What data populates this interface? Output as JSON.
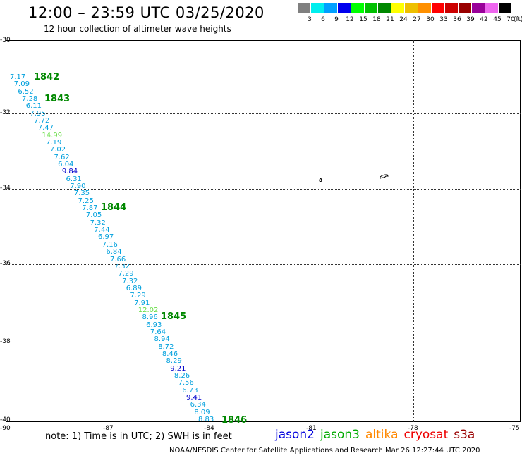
{
  "title": "12:00 – 23:59 UTC 03/25/2020",
  "subtitle": "12 hour collection of altimeter wave heights",
  "scale": {
    "unit": "(ft)",
    "swatches": [
      {
        "label": "3",
        "color": "#808080"
      },
      {
        "label": "6",
        "color": "#00eeee"
      },
      {
        "label": "9",
        "color": "#00a0ff"
      },
      {
        "label": "12",
        "color": "#0000ee"
      },
      {
        "label": "15",
        "color": "#00ff00"
      },
      {
        "label": "18",
        "color": "#00c000"
      },
      {
        "label": "21",
        "color": "#008800"
      },
      {
        "label": "24",
        "color": "#ffff00"
      },
      {
        "label": "27",
        "color": "#eec000"
      },
      {
        "label": "30",
        "color": "#ff9000"
      },
      {
        "label": "33",
        "color": "#ff0000"
      },
      {
        "label": "36",
        "color": "#cc0000"
      },
      {
        "label": "39",
        "color": "#990000"
      },
      {
        "label": "42",
        "color": "#990099"
      },
      {
        "label": "45",
        "color": "#ee66ee"
      },
      {
        "label": "70",
        "color": "#000000"
      }
    ]
  },
  "axes": {
    "lat_labels": [
      "-30",
      "-32",
      "-34",
      "-36",
      "-38",
      "-40"
    ],
    "lon_labels": [
      "-90",
      "-87",
      "-84",
      "-81",
      "-78",
      "-75"
    ]
  },
  "orbits": [
    "1842",
    "1843",
    "1844",
    "1845",
    "1846"
  ],
  "points": [
    {
      "v": "7.17",
      "c": "#00a0dd"
    },
    {
      "v": "7.09",
      "c": "#00a0dd"
    },
    {
      "v": "6.52",
      "c": "#00a0dd"
    },
    {
      "v": "7.28",
      "c": "#00a0dd"
    },
    {
      "v": "6.11",
      "c": "#00a0dd"
    },
    {
      "v": "7.95",
      "c": "#00a0dd"
    },
    {
      "v": "7.72",
      "c": "#00a0dd"
    },
    {
      "v": "7.47",
      "c": "#00a0dd"
    },
    {
      "v": "14.99",
      "c": "#66dd44"
    },
    {
      "v": "7.19",
      "c": "#00a0dd"
    },
    {
      "v": "7.02",
      "c": "#00a0dd"
    },
    {
      "v": "7.62",
      "c": "#00a0dd"
    },
    {
      "v": "6.04",
      "c": "#00a0dd"
    },
    {
      "v": "9.84",
      "c": "#0000cc"
    },
    {
      "v": "6.31",
      "c": "#00a0dd"
    },
    {
      "v": "7.90",
      "c": "#00a0dd"
    },
    {
      "v": "7.35",
      "c": "#00a0dd"
    },
    {
      "v": "7.25",
      "c": "#00a0dd"
    },
    {
      "v": "7.87",
      "c": "#00a0dd"
    },
    {
      "v": "7.05",
      "c": "#00a0dd"
    },
    {
      "v": "7.32",
      "c": "#00a0dd"
    },
    {
      "v": "7.44",
      "c": "#00a0dd"
    },
    {
      "v": "6.97",
      "c": "#00a0dd"
    },
    {
      "v": "7.16",
      "c": "#00a0dd"
    },
    {
      "v": "6.84",
      "c": "#00a0dd"
    },
    {
      "v": "7.66",
      "c": "#00a0dd"
    },
    {
      "v": "7.32",
      "c": "#00a0dd"
    },
    {
      "v": "7.29",
      "c": "#00a0dd"
    },
    {
      "v": "7.32",
      "c": "#00a0dd"
    },
    {
      "v": "6.89",
      "c": "#00a0dd"
    },
    {
      "v": "7.29",
      "c": "#00a0dd"
    },
    {
      "v": "7.91",
      "c": "#00a0dd"
    },
    {
      "v": "12.02",
      "c": "#66dd44"
    },
    {
      "v": "8.96",
      "c": "#00a0dd"
    },
    {
      "v": "6.93",
      "c": "#00a0dd"
    },
    {
      "v": "7.64",
      "c": "#00a0dd"
    },
    {
      "v": "8.94",
      "c": "#00a0dd"
    },
    {
      "v": "8.72",
      "c": "#00a0dd"
    },
    {
      "v": "8.46",
      "c": "#00a0dd"
    },
    {
      "v": "8.29",
      "c": "#00a0dd"
    },
    {
      "v": "9.21",
      "c": "#0000cc"
    },
    {
      "v": "8.26",
      "c": "#00a0dd"
    },
    {
      "v": "7.56",
      "c": "#00a0dd"
    },
    {
      "v": "6.73",
      "c": "#00a0dd"
    },
    {
      "v": "9.41",
      "c": "#0000cc"
    },
    {
      "v": "6.34",
      "c": "#00a0dd"
    },
    {
      "v": "8.09",
      "c": "#00a0dd"
    },
    {
      "v": "8.83",
      "c": "#00a0dd"
    }
  ],
  "note": "note: 1) Time is in UTC; 2) SWH is in feet",
  "satellites": [
    {
      "name": "jason2",
      "color": "#0000dd"
    },
    {
      "name": "jason3",
      "color": "#00aa00"
    },
    {
      "name": "altika",
      "color": "#ff8800"
    },
    {
      "name": "cryosat",
      "color": "#ee0000"
    },
    {
      "name": "s3a",
      "color": "#990000"
    }
  ],
  "credit": "NOAA/NESDIS Center for Satellite Applications and Research    Mar 26 12:27:44 UTC 2020"
}
